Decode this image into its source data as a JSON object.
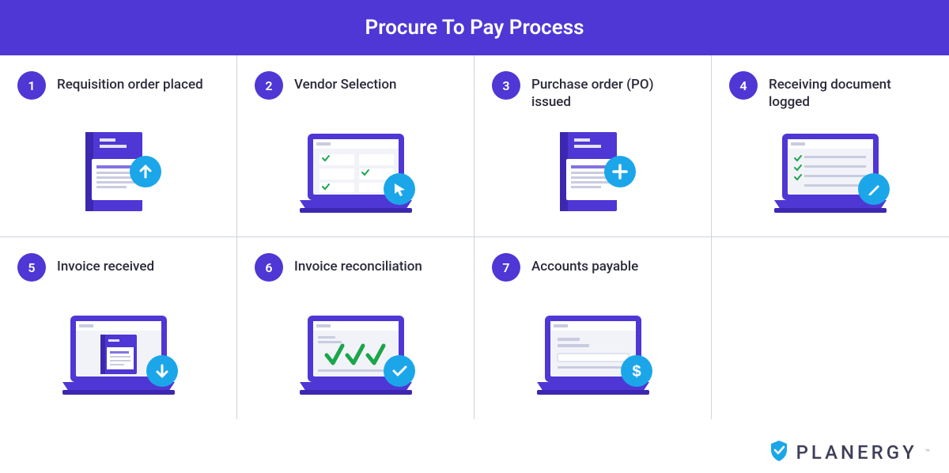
{
  "title": "Procure To Pay Process",
  "header_bg": "#4e37d4",
  "grid": {
    "columns": 4,
    "rows": 2,
    "divider_color": "#cfd3e0"
  },
  "typography": {
    "title_fontsize": 26,
    "label_fontsize": 17,
    "label_color": "#2a2a3a",
    "brand_fontsize": 24,
    "brand_color": "#3e3f58",
    "brand_letter_spacing": 4
  },
  "number_badge": {
    "bg": "#4e37d4",
    "fg": "#ffffff",
    "diameter": 36
  },
  "action_badge": {
    "bg": "#1ca6ea",
    "fg": "#ffffff",
    "diameter": 40
  },
  "illustration_palette": {
    "primary": "#4e37d4",
    "primary_dark": "#3c28b0",
    "screen_bg": "#f2f3f9",
    "line": "#c9cce0",
    "check_green": "#1aa64a",
    "white": "#ffffff"
  },
  "steps": [
    {
      "n": "1",
      "label": "Requisition order placed",
      "icon": "folder",
      "badge": "arrow-up"
    },
    {
      "n": "2",
      "label": "Vendor Selection",
      "icon": "laptop-grid-checks",
      "badge": "cursor"
    },
    {
      "n": "3",
      "label": "Purchase order (PO) issued",
      "icon": "folder",
      "badge": "plus"
    },
    {
      "n": "4",
      "label": "Receiving document logged",
      "icon": "laptop-checklist",
      "badge": "pencil"
    },
    {
      "n": "5",
      "label": "Invoice received",
      "icon": "laptop-doc",
      "badge": "arrow-down"
    },
    {
      "n": "6",
      "label": "Invoice reconciliation",
      "icon": "laptop-triple-check",
      "badge": "check"
    },
    {
      "n": "7",
      "label": "Accounts payable",
      "icon": "laptop-form",
      "badge": "dollar"
    }
  ],
  "brand": {
    "name": "PLANERGY",
    "shield_fill": "#1ca6ea",
    "shield_check": "#ffffff"
  }
}
